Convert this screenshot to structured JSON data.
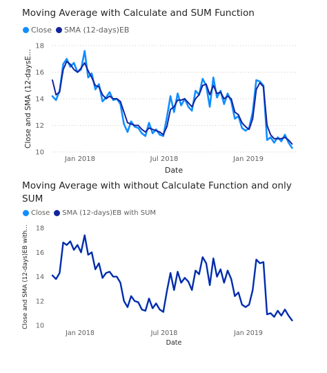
{
  "chart_data": [
    {
      "type": "line",
      "title": "Moving Average with Calculate and SUM Function",
      "xlabel": "Date",
      "ylabel": "Close and SMA (12-daysE...",
      "ylim": [
        10,
        18
      ],
      "y_ticks": [
        "18",
        "16",
        "14",
        "12",
        "10"
      ],
      "x_ticks": [
        "Jan 2018",
        "Jul 2018",
        "Jan 2019"
      ],
      "x_range": [
        "2017-10-19",
        "2019-04-09"
      ],
      "grid": "horizontal dotted",
      "legend": "top-left",
      "series": [
        {
          "name": "Close",
          "color": "#118dff",
          "x": [
            "2017-10-19",
            "2017-10-27",
            "2017-11-04",
            "2017-11-12",
            "2017-11-20",
            "2017-11-28",
            "2017-12-06",
            "2017-12-14",
            "2017-12-22",
            "2017-12-30",
            "2018-01-07",
            "2018-01-15",
            "2018-01-23",
            "2018-01-31",
            "2018-02-08",
            "2018-02-16",
            "2018-02-24",
            "2018-03-04",
            "2018-03-12",
            "2018-03-20",
            "2018-03-28",
            "2018-04-05",
            "2018-04-13",
            "2018-04-21",
            "2018-04-29",
            "2018-05-07",
            "2018-05-15",
            "2018-05-23",
            "2018-05-31",
            "2018-06-08",
            "2018-06-16",
            "2018-06-24",
            "2018-07-02",
            "2018-07-10",
            "2018-07-18",
            "2018-07-26",
            "2018-08-03",
            "2018-08-11",
            "2018-08-19",
            "2018-08-27",
            "2018-09-04",
            "2018-09-12",
            "2018-09-20",
            "2018-09-28",
            "2018-10-06",
            "2018-10-14",
            "2018-10-22",
            "2018-10-30",
            "2018-11-07",
            "2018-11-15",
            "2018-11-23",
            "2018-12-01",
            "2018-12-09",
            "2018-12-17",
            "2018-12-25",
            "2019-01-02",
            "2019-01-10",
            "2019-01-18",
            "2019-01-26",
            "2019-02-03",
            "2019-02-11",
            "2019-02-19",
            "2019-02-27",
            "2019-03-07",
            "2019-03-15",
            "2019-03-23",
            "2019-03-31",
            "2019-04-08"
          ],
          "values": [
            14.2,
            13.9,
            14.6,
            16.6,
            17.0,
            16.4,
            16.7,
            16.0,
            16.2,
            17.6,
            15.6,
            15.9,
            14.7,
            15.1,
            13.8,
            14.1,
            14.5,
            13.9,
            14.0,
            13.6,
            12.1,
            11.5,
            12.3,
            11.9,
            11.8,
            11.4,
            11.2,
            12.2,
            11.4,
            11.7,
            11.3,
            11.2,
            12.6,
            14.2,
            13.0,
            14.4,
            13.5,
            14.0,
            13.4,
            13.1,
            14.6,
            14.3,
            15.5,
            15.0,
            13.4,
            15.6,
            14.1,
            14.6,
            13.6,
            14.4,
            13.8,
            12.5,
            12.7,
            11.8,
            11.6,
            11.8,
            13.0,
            15.4,
            15.3,
            15.0,
            10.9,
            11.1,
            10.7,
            11.1,
            10.8,
            11.3,
            10.7,
            10.3
          ]
        },
        {
          "name": "SMA (12-days)EB",
          "color": "#12239e",
          "x": [
            "2017-10-19",
            "2017-10-27",
            "2017-11-04",
            "2017-11-12",
            "2017-11-20",
            "2017-11-28",
            "2017-12-06",
            "2017-12-14",
            "2017-12-22",
            "2017-12-30",
            "2018-01-07",
            "2018-01-15",
            "2018-01-23",
            "2018-01-31",
            "2018-02-08",
            "2018-02-16",
            "2018-02-24",
            "2018-03-04",
            "2018-03-12",
            "2018-03-20",
            "2018-03-28",
            "2018-04-05",
            "2018-04-13",
            "2018-04-21",
            "2018-04-29",
            "2018-05-07",
            "2018-05-15",
            "2018-05-23",
            "2018-05-31",
            "2018-06-08",
            "2018-06-16",
            "2018-06-24",
            "2018-07-02",
            "2018-07-10",
            "2018-07-18",
            "2018-07-26",
            "2018-08-03",
            "2018-08-11",
            "2018-08-19",
            "2018-08-27",
            "2018-09-04",
            "2018-09-12",
            "2018-09-20",
            "2018-09-28",
            "2018-10-06",
            "2018-10-14",
            "2018-10-22",
            "2018-10-30",
            "2018-11-07",
            "2018-11-15",
            "2018-11-23",
            "2018-12-01",
            "2018-12-09",
            "2018-12-17",
            "2018-12-25",
            "2019-01-02",
            "2019-01-10",
            "2019-01-18",
            "2019-01-26",
            "2019-02-03",
            "2019-02-11",
            "2019-02-19",
            "2019-02-27",
            "2019-03-07",
            "2019-03-15",
            "2019-03-23",
            "2019-03-31",
            "2019-04-08"
          ],
          "values": [
            15.4,
            14.3,
            14.5,
            16.2,
            16.8,
            16.6,
            16.2,
            16.0,
            16.3,
            16.7,
            16.1,
            15.6,
            15.0,
            14.9,
            14.3,
            14.0,
            14.2,
            14.0,
            14.0,
            13.8,
            13.0,
            12.2,
            12.1,
            12.0,
            12.0,
            11.7,
            11.5,
            11.8,
            11.7,
            11.6,
            11.5,
            11.3,
            11.9,
            13.2,
            13.4,
            13.9,
            13.9,
            14.0,
            13.7,
            13.4,
            14.0,
            14.3,
            15.0,
            15.1,
            14.3,
            15.0,
            14.4,
            14.5,
            14.0,
            14.2,
            14.0,
            13.0,
            12.8,
            12.2,
            11.9,
            11.7,
            12.5,
            14.7,
            15.2,
            14.9,
            12.0,
            11.3,
            11.0,
            11.0,
            11.0,
            11.1,
            10.9,
            10.6
          ]
        }
      ]
    },
    {
      "type": "line",
      "title": "Moving Average with without Calculate Function and only SUM",
      "xlabel": "Date",
      "ylabel": "Close and SMA (12-days)EB with...",
      "ylim": [
        10,
        18
      ],
      "y_ticks": [
        "18",
        "16",
        "14",
        "12",
        "10"
      ],
      "x_ticks": [
        "Jan 2018",
        "Jul 2018",
        "Jan 2019"
      ],
      "x_range": [
        "2017-10-19",
        "2019-04-09"
      ],
      "grid": "none",
      "legend": "top-left",
      "series": [
        {
          "name": "Close",
          "color": "#118dff",
          "x": [
            "2017-10-19",
            "2017-10-27",
            "2017-11-04",
            "2017-11-12",
            "2017-11-20",
            "2017-11-28",
            "2017-12-06",
            "2017-12-14",
            "2017-12-22",
            "2017-12-30",
            "2018-01-07",
            "2018-01-15",
            "2018-01-23",
            "2018-01-31",
            "2018-02-08",
            "2018-02-16",
            "2018-02-24",
            "2018-03-04",
            "2018-03-12",
            "2018-03-20",
            "2018-03-28",
            "2018-04-05",
            "2018-04-13",
            "2018-04-21",
            "2018-04-29",
            "2018-05-07",
            "2018-05-15",
            "2018-05-23",
            "2018-05-31",
            "2018-06-08",
            "2018-06-16",
            "2018-06-24",
            "2018-07-02",
            "2018-07-10",
            "2018-07-18",
            "2018-07-26",
            "2018-08-03",
            "2018-08-11",
            "2018-08-19",
            "2018-08-27",
            "2018-09-04",
            "2018-09-12",
            "2018-09-20",
            "2018-09-28",
            "2018-10-06",
            "2018-10-14",
            "2018-10-22",
            "2018-10-30",
            "2018-11-07",
            "2018-11-15",
            "2018-11-23",
            "2018-12-01",
            "2018-12-09",
            "2018-12-17",
            "2018-12-25",
            "2019-01-02",
            "2019-01-10",
            "2019-01-18",
            "2019-01-26",
            "2019-02-03",
            "2019-02-11",
            "2019-02-19",
            "2019-02-27",
            "2019-03-07",
            "2019-03-15",
            "2019-03-23",
            "2019-03-31",
            "2019-04-08"
          ],
          "values": [
            14.1,
            13.8,
            14.3,
            16.8,
            16.6,
            16.9,
            16.2,
            16.6,
            16.0,
            17.4,
            15.8,
            16.0,
            14.6,
            15.1,
            13.9,
            14.3,
            14.4,
            14.0,
            14.0,
            13.5,
            12.0,
            11.5,
            12.4,
            12.0,
            11.9,
            11.3,
            11.2,
            12.2,
            11.4,
            11.8,
            11.3,
            11.1,
            12.8,
            14.3,
            12.9,
            14.4,
            13.5,
            13.9,
            13.6,
            12.9,
            14.5,
            14.2,
            15.6,
            15.1,
            13.3,
            15.5,
            14.0,
            14.6,
            13.5,
            14.5,
            13.8,
            12.4,
            12.7,
            11.7,
            11.5,
            11.7,
            12.9,
            15.4,
            15.1,
            15.2,
            10.9,
            11.0,
            10.7,
            11.2,
            10.8,
            11.3,
            10.8,
            10.4
          ]
        },
        {
          "name": "SMA (12-days)EB with SUM",
          "color": "#12239e",
          "x": [
            "2017-10-19",
            "2017-10-27",
            "2017-11-04",
            "2017-11-12",
            "2017-11-20",
            "2017-11-28",
            "2017-12-06",
            "2017-12-14",
            "2017-12-22",
            "2017-12-30",
            "2018-01-07",
            "2018-01-15",
            "2018-01-23",
            "2018-01-31",
            "2018-02-08",
            "2018-02-16",
            "2018-02-24",
            "2018-03-04",
            "2018-03-12",
            "2018-03-20",
            "2018-03-28",
            "2018-04-05",
            "2018-04-13",
            "2018-04-21",
            "2018-04-29",
            "2018-05-07",
            "2018-05-15",
            "2018-05-23",
            "2018-05-31",
            "2018-06-08",
            "2018-06-16",
            "2018-06-24",
            "2018-07-02",
            "2018-07-10",
            "2018-07-18",
            "2018-07-26",
            "2018-08-03",
            "2018-08-11",
            "2018-08-19",
            "2018-08-27",
            "2018-09-04",
            "2018-09-12",
            "2018-09-20",
            "2018-09-28",
            "2018-10-06",
            "2018-10-14",
            "2018-10-22",
            "2018-10-30",
            "2018-11-07",
            "2018-11-15",
            "2018-11-23",
            "2018-12-01",
            "2018-12-09",
            "2018-12-17",
            "2018-12-25",
            "2019-01-02",
            "2019-01-10",
            "2019-01-18",
            "2019-01-26",
            "2019-02-03",
            "2019-02-11",
            "2019-02-19",
            "2019-02-27",
            "2019-03-07",
            "2019-03-15",
            "2019-03-23",
            "2019-03-31",
            "2019-04-08"
          ],
          "values": [
            14.1,
            13.8,
            14.3,
            16.8,
            16.6,
            16.9,
            16.2,
            16.6,
            16.0,
            17.4,
            15.8,
            16.0,
            14.6,
            15.1,
            13.9,
            14.3,
            14.4,
            14.0,
            14.0,
            13.5,
            12.0,
            11.5,
            12.4,
            12.0,
            11.9,
            11.3,
            11.2,
            12.2,
            11.4,
            11.8,
            11.3,
            11.1,
            12.8,
            14.3,
            12.9,
            14.4,
            13.5,
            13.9,
            13.6,
            12.9,
            14.5,
            14.2,
            15.6,
            15.1,
            13.3,
            15.5,
            14.0,
            14.6,
            13.5,
            14.5,
            13.8,
            12.4,
            12.7,
            11.7,
            11.5,
            11.7,
            12.9,
            15.4,
            15.1,
            15.2,
            10.9,
            11.0,
            10.7,
            11.2,
            10.8,
            11.3,
            10.8,
            10.4
          ]
        }
      ]
    }
  ]
}
